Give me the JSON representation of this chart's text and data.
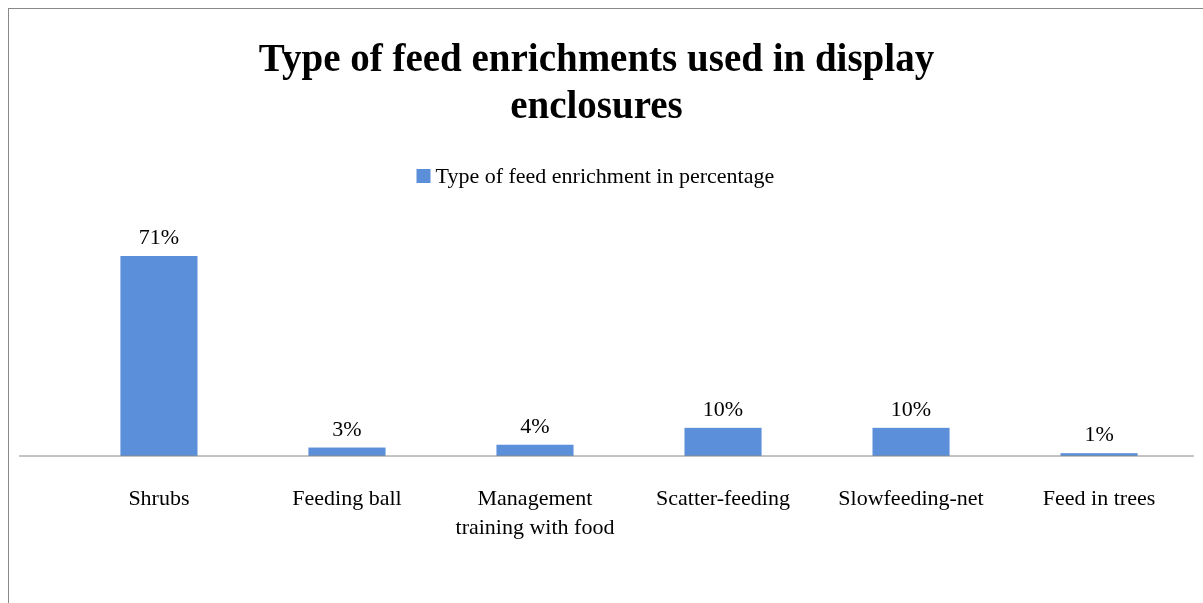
{
  "chart_data": {
    "type": "bar",
    "title": "Type of feed enrichments used in display enclosures",
    "categories": [
      "Shrubs",
      "Feeding ball",
      "Management training with food",
      "Scatter-feeding",
      "Slowfeeding-net",
      "Feed in trees"
    ],
    "series": [
      {
        "name": "Type of feed enrichment in percentage",
        "color": "#5b8fd9",
        "values": [
          71,
          3,
          4,
          10,
          10,
          1
        ],
        "value_labels": [
          "71%",
          "3%",
          "4%",
          "10%",
          "10%",
          "1%"
        ]
      }
    ],
    "legend": "top"
  }
}
